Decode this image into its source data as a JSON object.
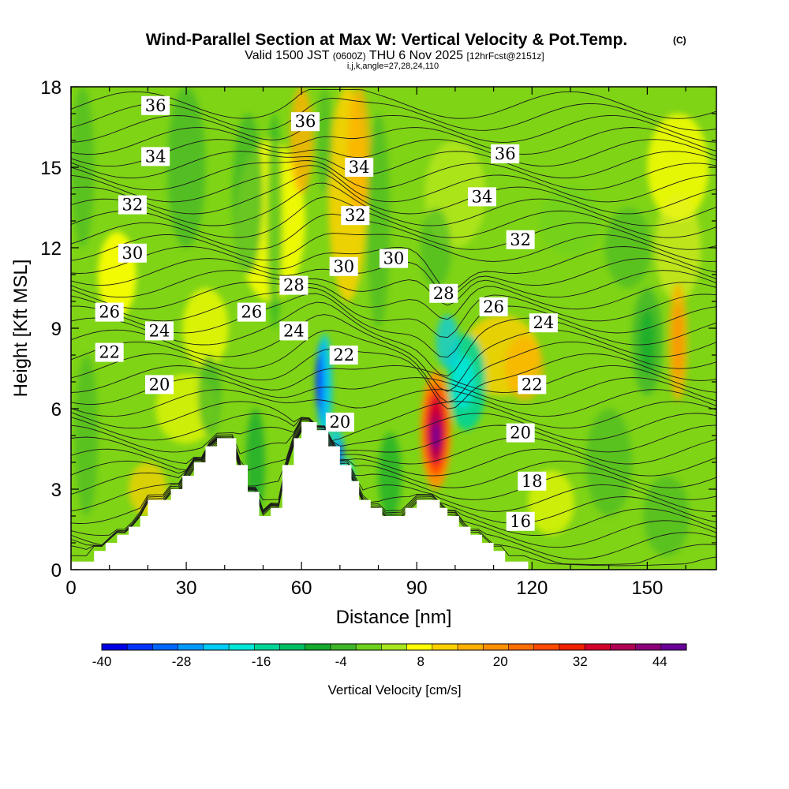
{
  "chart_data": {
    "type": "heatmap",
    "title": "Wind-Parallel Section at Max W: Vertical Velocity & Pot.Temp.",
    "title_suffix": "(C)",
    "subtitle_parts": [
      "Valid 1500 JST",
      "(0600Z)",
      "THU 6 Nov 2025",
      "[12hrFcst@2151z]"
    ],
    "subtitle2": "i,j,k,angle=27,28,24,110",
    "xlabel": "Distance [nm]",
    "ylabel": "Height [Kft MSL]",
    "xlim": [
      0,
      168
    ],
    "ylim": [
      0,
      18
    ],
    "x_ticks": [
      0,
      30,
      60,
      90,
      120,
      150
    ],
    "y_ticks": [
      0,
      3,
      6,
      9,
      12,
      15,
      18
    ],
    "colorbar": {
      "title": "Vertical Velocity [cm/s]",
      "range": [
        -40,
        48
      ],
      "step": 4,
      "tick_labels": [
        "-40",
        "-28",
        "-16",
        "-4",
        "8",
        "20",
        "32",
        "44"
      ],
      "colors": [
        "#0000e6",
        "#0033ff",
        "#0066ff",
        "#0099ff",
        "#00ccf5",
        "#00e6d9",
        "#00d496",
        "#00bf64",
        "#15ab2e",
        "#3fb52a",
        "#6ed21c",
        "#a8e620",
        "#ffff00",
        "#ffd000",
        "#ffb000",
        "#ff9000",
        "#ff6e00",
        "#ff4b00",
        "#f02000",
        "#d5002b",
        "#b00055",
        "#8c007a",
        "#6a0099"
      ]
    },
    "vertical_velocity_features": [
      {
        "x": 95,
        "y": 5.2,
        "w_max": 46,
        "note": "updraft core"
      },
      {
        "x": 66,
        "y": 7.0,
        "w_min": -38,
        "note": "downdraft core"
      },
      {
        "x": 102,
        "y": 7.2,
        "w_min": -20,
        "note": "downdraft"
      },
      {
        "x": 70,
        "y": 15.5,
        "w_max": 12,
        "note": "upper updraft"
      },
      {
        "x": 158,
        "y": 8.5,
        "w_max": 16,
        "note": "updraft"
      }
    ],
    "terrain": [
      [
        0,
        0.3
      ],
      [
        6,
        0.3
      ],
      [
        6,
        0.7
      ],
      [
        9,
        0.7
      ],
      [
        9,
        1.0
      ],
      [
        12,
        1.0
      ],
      [
        12,
        1.3
      ],
      [
        15,
        1.3
      ],
      [
        15,
        1.6
      ],
      [
        18,
        1.6
      ],
      [
        18,
        2.0
      ],
      [
        20,
        2.0
      ],
      [
        20,
        2.6
      ],
      [
        26,
        2.6
      ],
      [
        26,
        3.0
      ],
      [
        29,
        3.0
      ],
      [
        29,
        3.5
      ],
      [
        32,
        3.5
      ],
      [
        32,
        4.0
      ],
      [
        35,
        4.0
      ],
      [
        35,
        4.6
      ],
      [
        38,
        4.6
      ],
      [
        38,
        4.9
      ],
      [
        43,
        4.9
      ],
      [
        43,
        3.9
      ],
      [
        46,
        3.9
      ],
      [
        46,
        2.9
      ],
      [
        49,
        2.9
      ],
      [
        49,
        2.0
      ],
      [
        52,
        2.0
      ],
      [
        52,
        2.3
      ],
      [
        55,
        2.3
      ],
      [
        55,
        3.9
      ],
      [
        58,
        3.9
      ],
      [
        58,
        4.9
      ],
      [
        60,
        4.9
      ],
      [
        60,
        5.5
      ],
      [
        64,
        5.5
      ],
      [
        64,
        5.2
      ],
      [
        67,
        5.2
      ],
      [
        67,
        4.6
      ],
      [
        70,
        4.6
      ],
      [
        70,
        3.9
      ],
      [
        73,
        3.9
      ],
      [
        73,
        3.3
      ],
      [
        75,
        3.3
      ],
      [
        75,
        2.6
      ],
      [
        78,
        2.6
      ],
      [
        78,
        2.3
      ],
      [
        81,
        2.3
      ],
      [
        81,
        2.0
      ],
      [
        87,
        2.0
      ],
      [
        87,
        2.3
      ],
      [
        90,
        2.3
      ],
      [
        90,
        2.6
      ],
      [
        96,
        2.6
      ],
      [
        96,
        2.3
      ],
      [
        98,
        2.3
      ],
      [
        98,
        2.0
      ],
      [
        101,
        2.0
      ],
      [
        101,
        1.6
      ],
      [
        104,
        1.6
      ],
      [
        104,
        1.3
      ],
      [
        107,
        1.3
      ],
      [
        107,
        1.0
      ],
      [
        110,
        1.0
      ],
      [
        110,
        0.7
      ],
      [
        113,
        0.7
      ],
      [
        113,
        0.3
      ],
      [
        119,
        0.3
      ],
      [
        119,
        0
      ],
      [
        168,
        0
      ]
    ],
    "potential_temperature_contours": {
      "units": "C",
      "levels": [
        16,
        18,
        20,
        22,
        24,
        26,
        28,
        30,
        32,
        34,
        36
      ],
      "labels": [
        {
          "value": "36",
          "x": 22,
          "y": 17.3
        },
        {
          "value": "36",
          "x": 61,
          "y": 16.7
        },
        {
          "value": "36",
          "x": 113,
          "y": 15.5
        },
        {
          "value": "34",
          "x": 22,
          "y": 15.4
        },
        {
          "value": "34",
          "x": 75,
          "y": 15.0
        },
        {
          "value": "34",
          "x": 107,
          "y": 13.9
        },
        {
          "value": "32",
          "x": 16,
          "y": 13.6
        },
        {
          "value": "32",
          "x": 74,
          "y": 13.2
        },
        {
          "value": "32",
          "x": 117,
          "y": 12.3
        },
        {
          "value": "30",
          "x": 16,
          "y": 11.8
        },
        {
          "value": "30",
          "x": 71,
          "y": 11.3
        },
        {
          "value": "30",
          "x": 84,
          "y": 11.6
        },
        {
          "value": "28",
          "x": 58,
          "y": 10.6
        },
        {
          "value": "28",
          "x": 97,
          "y": 10.3
        },
        {
          "value": "26",
          "x": 10,
          "y": 9.6
        },
        {
          "value": "26",
          "x": 47,
          "y": 9.6
        },
        {
          "value": "26",
          "x": 110,
          "y": 9.8
        },
        {
          "value": "24",
          "x": 23,
          "y": 8.9
        },
        {
          "value": "24",
          "x": 58,
          "y": 8.9
        },
        {
          "value": "24",
          "x": 123,
          "y": 9.2
        },
        {
          "value": "22",
          "x": 10,
          "y": 8.1
        },
        {
          "value": "22",
          "x": 71,
          "y": 8.0
        },
        {
          "value": "22",
          "x": 120,
          "y": 6.9
        },
        {
          "value": "20",
          "x": 23,
          "y": 6.9
        },
        {
          "value": "20",
          "x": 70,
          "y": 5.5
        },
        {
          "value": "20",
          "x": 117,
          "y": 5.1
        },
        {
          "value": "18",
          "x": 120,
          "y": 3.3
        },
        {
          "value": "16",
          "x": 117,
          "y": 1.8
        }
      ]
    }
  }
}
